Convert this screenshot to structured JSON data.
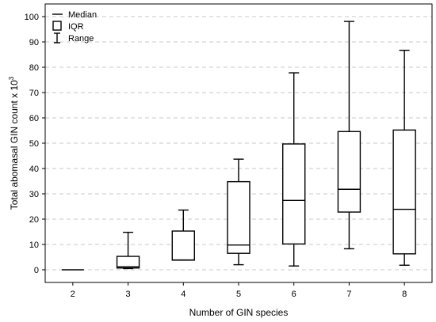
{
  "chart_data": {
    "type": "boxplot",
    "xlabel": "Number of GIN species",
    "ylabel_main": "Total abomasal GIN count x 10",
    "ylabel_sup": "3",
    "ylim": [
      -5,
      105
    ],
    "yticks": [
      0,
      10,
      20,
      30,
      40,
      50,
      60,
      70,
      80,
      90,
      100
    ],
    "grid": true,
    "legend_position": "top-left",
    "legend": [
      {
        "symbol": "median",
        "label": "Median"
      },
      {
        "symbol": "iqr",
        "label": "IQR"
      },
      {
        "symbol": "range",
        "label": "Range"
      }
    ],
    "categories": [
      "2",
      "3",
      "4",
      "5",
      "6",
      "7",
      "8"
    ],
    "boxes": [
      {
        "category": "2",
        "min": 0,
        "q1": 0,
        "median": 0,
        "q3": 0,
        "max": 0
      },
      {
        "category": "3",
        "min": 0.5,
        "q1": 0.7,
        "median": 1.2,
        "q3": 5.3,
        "max": 14.8
      },
      {
        "category": "4",
        "min": 3.8,
        "q1": 3.8,
        "median": 3.9,
        "q3": 15.3,
        "max": 23.6
      },
      {
        "category": "5",
        "min": 2.0,
        "q1": 6.5,
        "median": 9.8,
        "q3": 34.8,
        "max": 43.7
      },
      {
        "category": "6",
        "min": 1.5,
        "q1": 10.2,
        "median": 27.4,
        "q3": 49.7,
        "max": 77.8
      },
      {
        "category": "7",
        "min": 8.3,
        "q1": 22.8,
        "median": 31.8,
        "q3": 54.6,
        "max": 98.1
      },
      {
        "category": "8",
        "min": 1.8,
        "q1": 6.3,
        "median": 23.9,
        "q3": 55.2,
        "max": 86.7
      }
    ]
  }
}
